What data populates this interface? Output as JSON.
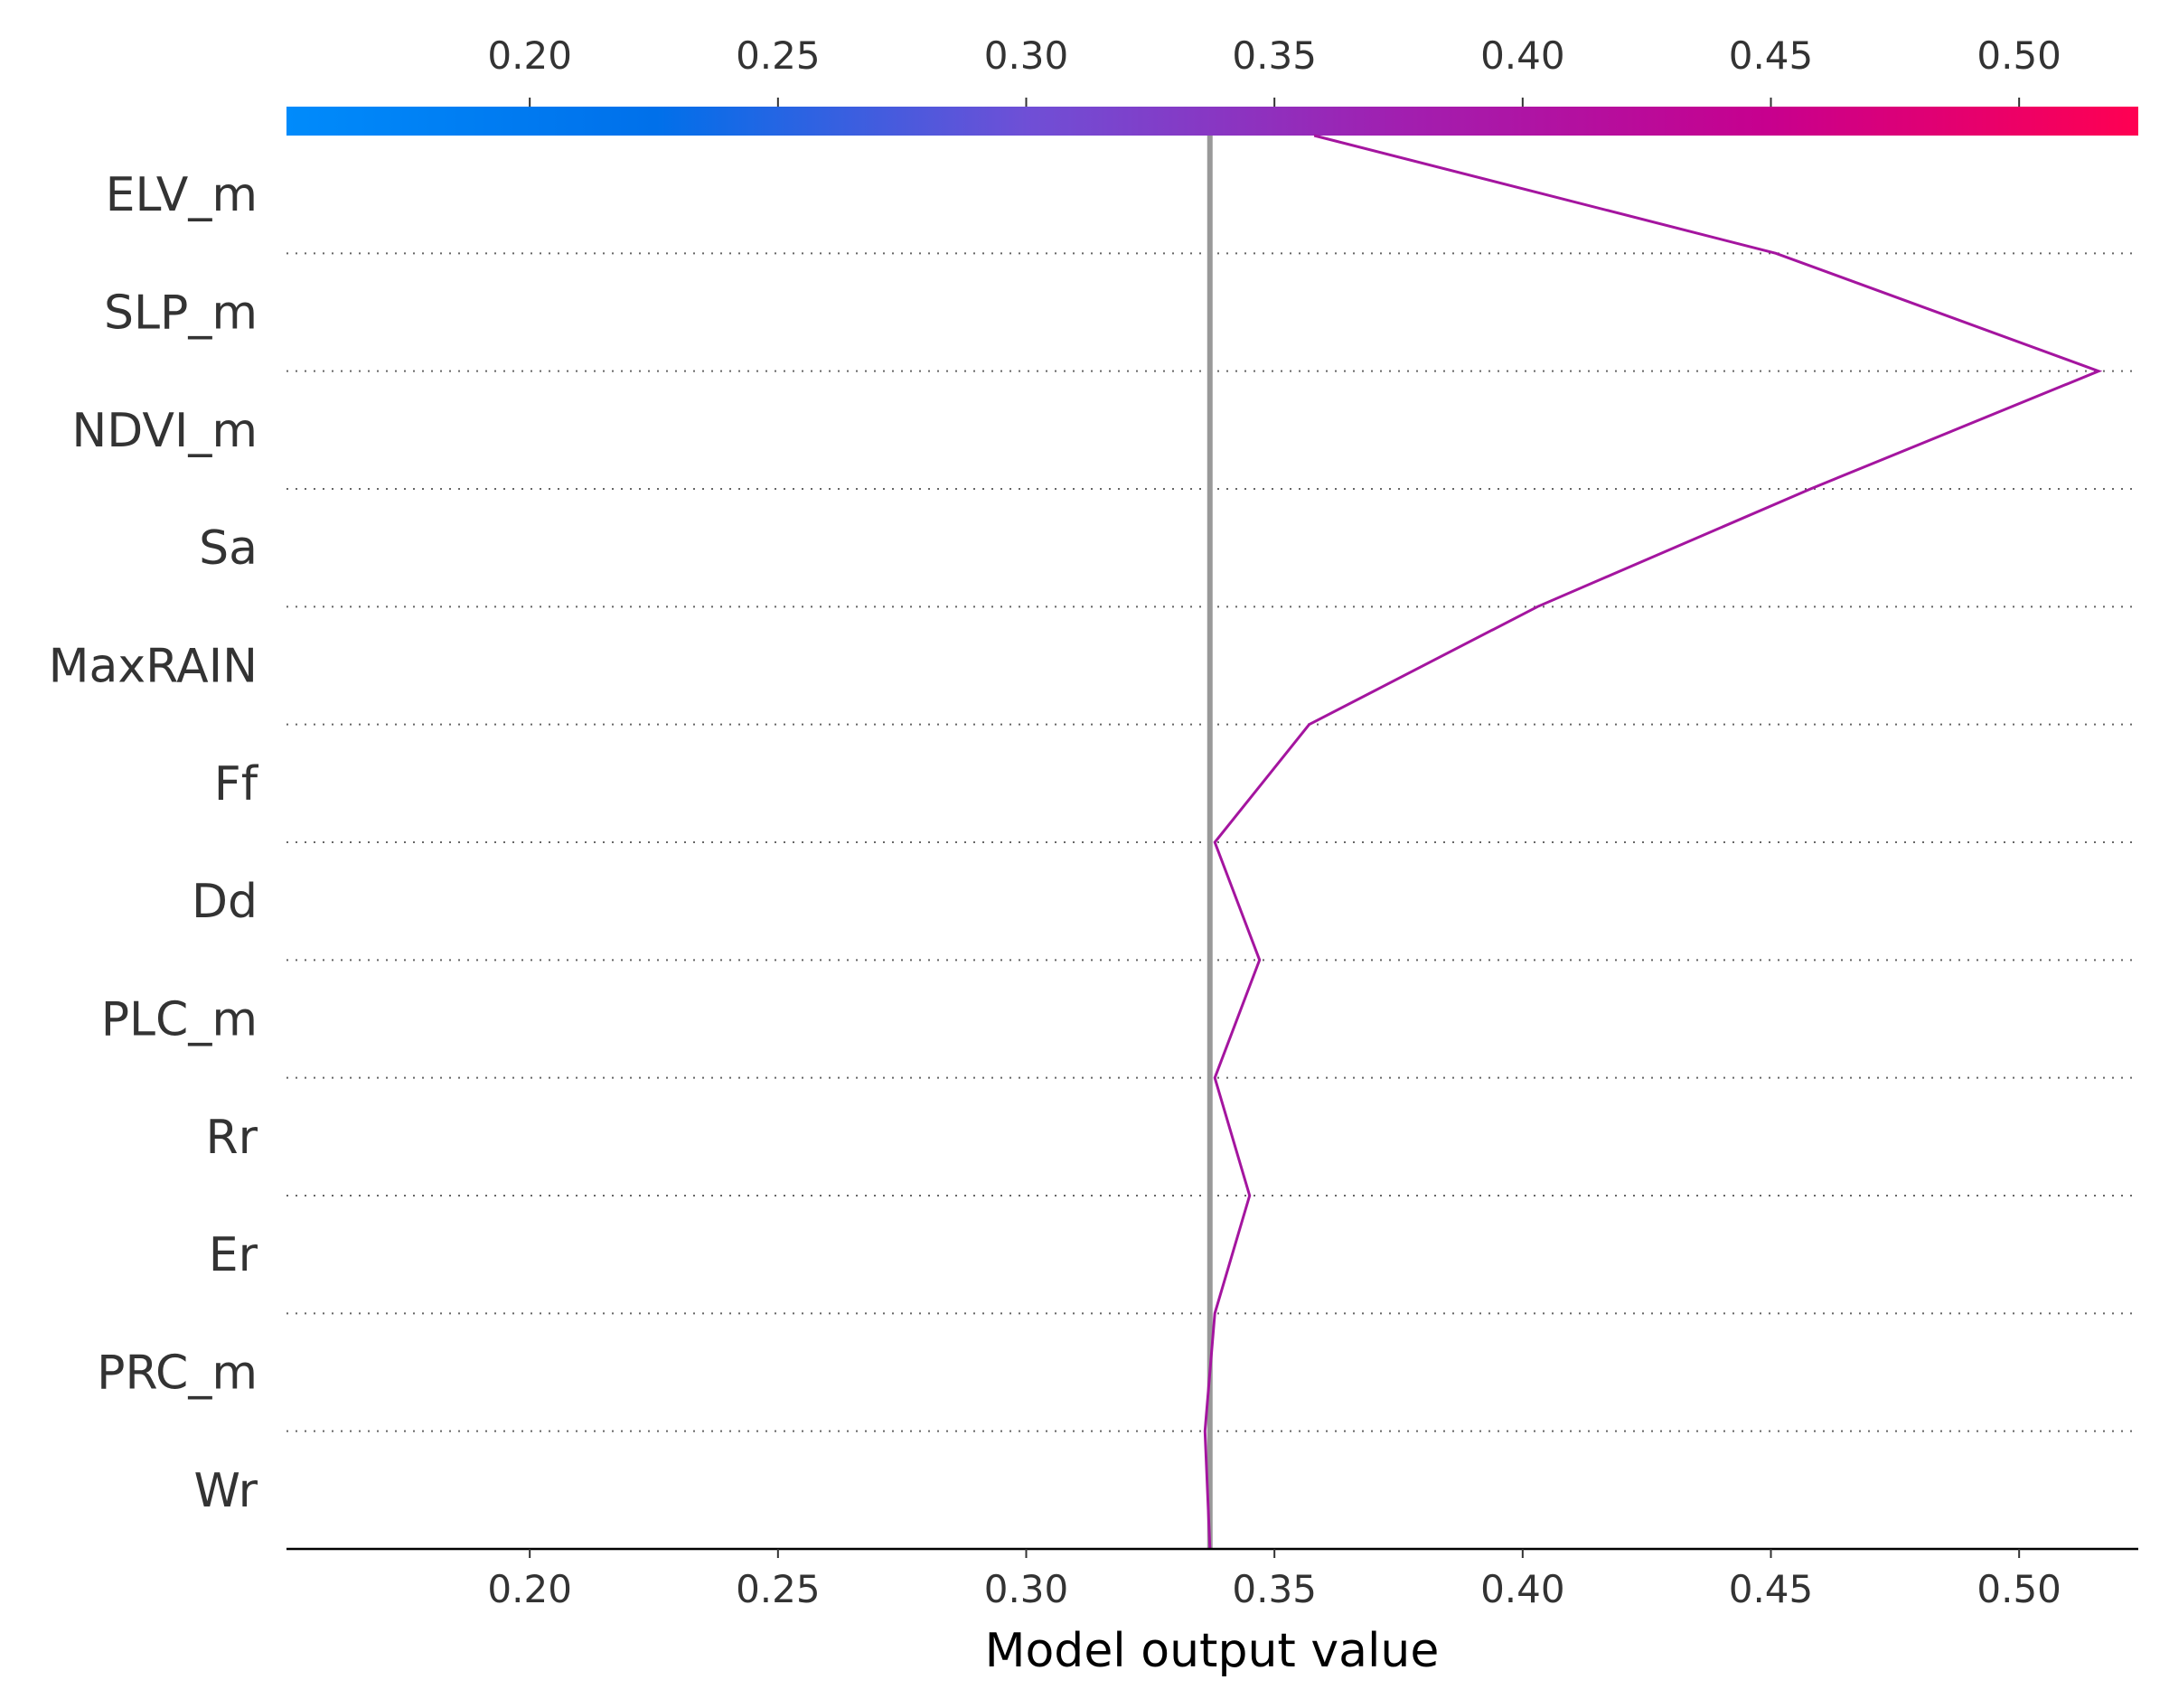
{
  "chart_data": {
    "type": "line",
    "chart_kind": "SHAP decision plot",
    "xlabel": "Model output value",
    "xlim": [
      0.151,
      0.524
    ],
    "xticks": [
      0.2,
      0.25,
      0.3,
      0.35,
      0.4,
      0.45,
      0.5
    ],
    "xtick_labels": [
      "0.20",
      "0.25",
      "0.30",
      "0.35",
      "0.40",
      "0.45",
      "0.50"
    ],
    "features": [
      "ELV_m",
      "SLP_m",
      "NDVI_m",
      "Sa",
      "MaxRAIN",
      "Ff",
      "Dd",
      "PLC_m",
      "Rr",
      "Er",
      "PRC_m",
      "Wr"
    ],
    "base_value": 0.337,
    "path": [
      0.337,
      0.336,
      0.338,
      0.345,
      0.338,
      0.347,
      0.338,
      0.357,
      0.403,
      0.458,
      0.516,
      0.451,
      0.358
    ],
    "colorbar": {
      "range": [
        0.151,
        0.524
      ],
      "colors": [
        "#008bfb",
        "#0070ea",
        "#6f4fd6",
        "#a11fb0",
        "#c7008e",
        "#ff0052"
      ],
      "position": "top"
    },
    "line_color": "#a4159f",
    "base_line_color": "#999999",
    "grid": "dotted horizontal separators"
  }
}
